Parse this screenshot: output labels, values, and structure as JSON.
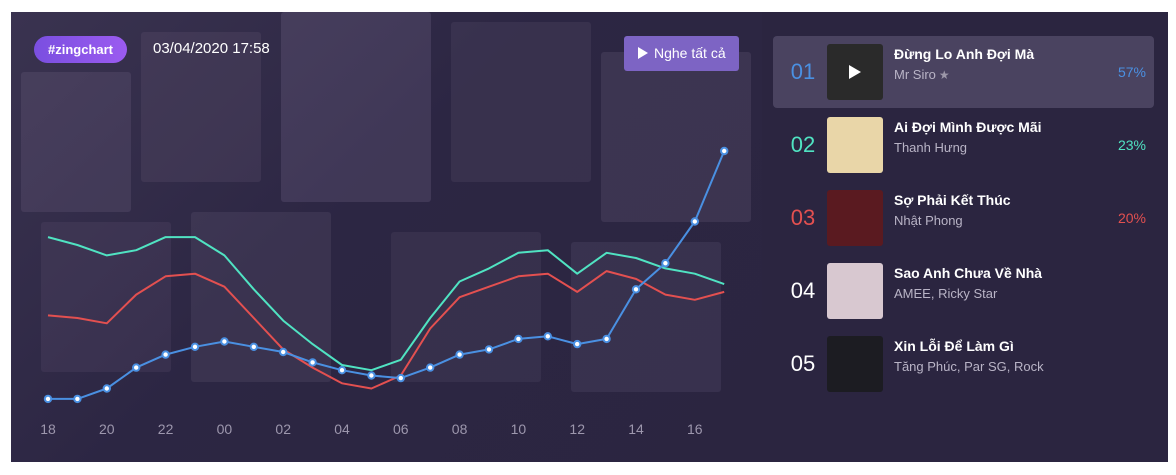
{
  "header": {
    "badge": "#zingchart",
    "datetime": "03/04/2020 17:58",
    "play_all_label": "Nghe tất cả"
  },
  "colors": {
    "series1": "#4a90e2",
    "series2": "#50e3c2",
    "series3": "#e35050"
  },
  "chart_data": {
    "type": "line",
    "categories": [
      "18",
      "19",
      "20",
      "21",
      "22",
      "23",
      "00",
      "01",
      "02",
      "03",
      "04",
      "05",
      "06",
      "07",
      "08",
      "09",
      "10",
      "11",
      "12",
      "13",
      "14",
      "15",
      "16",
      "17"
    ],
    "tick_labels": [
      "18",
      "20",
      "22",
      "00",
      "02",
      "04",
      "06",
      "08",
      "10",
      "12",
      "14",
      "16"
    ],
    "ylim": [
      0,
      100
    ],
    "grid": false,
    "legend": "none",
    "series": [
      {
        "color": "#4a90e2",
        "markers": true,
        "values": [
          5,
          5,
          9,
          17,
          22,
          25,
          27,
          25,
          23,
          19,
          16,
          14,
          13,
          17,
          22,
          24,
          28,
          29,
          26,
          28,
          47,
          57,
          73,
          100
        ]
      },
      {
        "color": "#50e3c2",
        "markers": false,
        "values": [
          67,
          64,
          60,
          62,
          67,
          67,
          60,
          47,
          35,
          26,
          18,
          16,
          20,
          36,
          50,
          55,
          61,
          62,
          53,
          61,
          59,
          55,
          53,
          49
        ]
      },
      {
        "color": "#e35050",
        "markers": false,
        "values": [
          37,
          36,
          34,
          45,
          52,
          53,
          48,
          36,
          24,
          17,
          11,
          9,
          14,
          32,
          44,
          48,
          52,
          53,
          46,
          54,
          51,
          45,
          43,
          46
        ]
      }
    ]
  },
  "songs": [
    {
      "rank": "01",
      "title": "Đừng Lo Anh Đợi Mà",
      "artist": "Mr Siro",
      "percent": "57%",
      "rank_color": "#4a90e2",
      "thumb_color": "#2a2a2a",
      "active": true,
      "premium": true
    },
    {
      "rank": "02",
      "title": "Ai Đợi Mình Được Mãi",
      "artist": "Thanh Hưng",
      "percent": "23%",
      "rank_color": "#50e3c2",
      "thumb_color": "#e9d6a8",
      "active": false,
      "premium": false
    },
    {
      "rank": "03",
      "title": "Sợ Phải Kết Thúc",
      "artist": "Nhật Phong",
      "percent": "20%",
      "rank_color": "#e35050",
      "thumb_color": "#5a1a20",
      "active": false,
      "premium": false
    },
    {
      "rank": "04",
      "title": "Sao Anh Chưa Về Nhà",
      "artist": "AMEE, Ricky Star",
      "percent": "",
      "rank_color": "#ffffff",
      "thumb_color": "#d8c8d0",
      "active": false,
      "premium": false
    },
    {
      "rank": "05",
      "title": "Xin Lỗi Để Làm Gì",
      "artist": "Tăng Phúc, Par SG, Rock",
      "percent": "",
      "rank_color": "#ffffff",
      "thumb_color": "#1c1c22",
      "active": false,
      "premium": false
    }
  ]
}
